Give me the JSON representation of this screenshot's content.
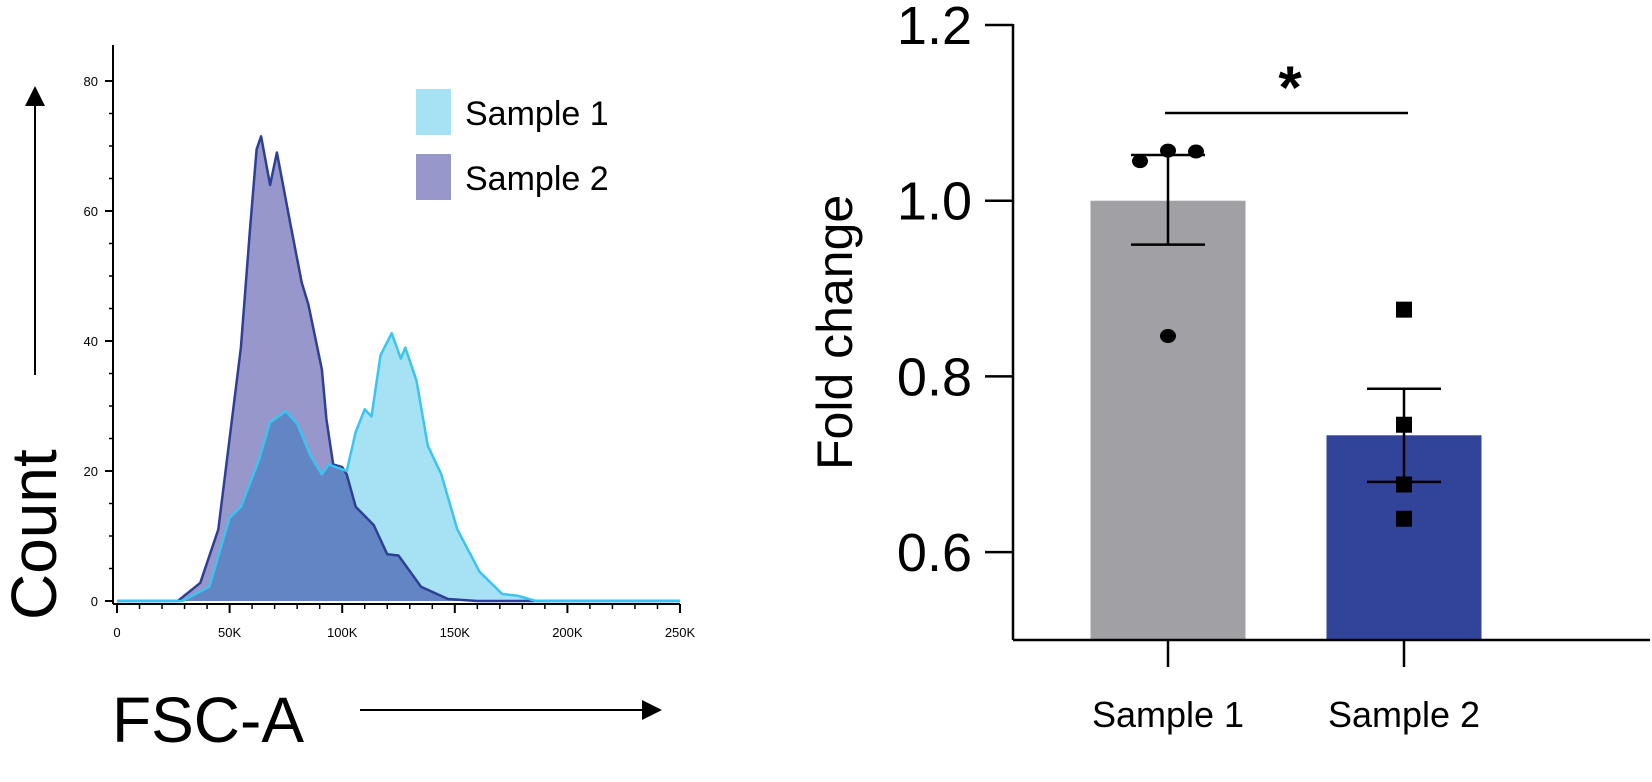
{
  "chart_data": [
    {
      "type": "area",
      "title": "",
      "xlabel": "FSC-A",
      "ylabel": "Count",
      "xlim": [
        0,
        250
      ],
      "ylim": [
        0,
        80
      ],
      "x_unit": "K",
      "x_ticks": [
        0,
        50,
        100,
        150,
        200,
        250
      ],
      "x_tick_labels": [
        "0",
        "50K",
        "100K",
        "150K",
        "200K",
        "250K"
      ],
      "y_ticks": [
        0,
        20,
        40,
        60,
        80
      ],
      "y_tick_labels": [
        "0",
        "20",
        "40",
        "60",
        "80"
      ],
      "legend_position": "top-right",
      "series": [
        {
          "name": "Sample 1",
          "fill": "#a6e1f4",
          "stroke": "#3cc4f0",
          "x": [
            0,
            29,
            41,
            50,
            55,
            63,
            68,
            75,
            80,
            86,
            91,
            94,
            102,
            106,
            110,
            113,
            117,
            122,
            126,
            128,
            133,
            138,
            144,
            151,
            161,
            171,
            178,
            186,
            250
          ],
          "y": [
            0,
            0,
            2.2,
            12.8,
            14.5,
            21.7,
            27.5,
            29.2,
            27.3,
            22.3,
            19.5,
            21,
            20,
            26,
            29.5,
            28.4,
            37.8,
            41.2,
            37.3,
            39,
            33.9,
            23.9,
            19.5,
            11.1,
            4.5,
            1.1,
            0.8,
            0,
            0
          ]
        },
        {
          "name": "Sample 2",
          "fill": "#9797cc",
          "stroke": "#2e3f96",
          "x": [
            0,
            27,
            37,
            45,
            50,
            55,
            59,
            62,
            64,
            68,
            71,
            77,
            82,
            85,
            91,
            93,
            96,
            100,
            102,
            106,
            114,
            120,
            125,
            135,
            147,
            160,
            250
          ],
          "y": [
            0,
            0,
            2.8,
            11,
            25,
            39,
            57,
            69.5,
            71.5,
            64,
            69,
            58,
            49,
            45.6,
            35.6,
            28,
            21,
            20.6,
            19.5,
            14.5,
            11.7,
            7.2,
            7,
            2.2,
            0.3,
            0,
            0
          ]
        }
      ]
    },
    {
      "type": "bar",
      "title": "",
      "xlabel": "",
      "ylabel": "Fold change",
      "ylim": [
        0.5,
        1.2
      ],
      "y_ticks": [
        0.6,
        0.8,
        1.0,
        1.2
      ],
      "y_tick_labels": [
        "0.6",
        "0.8",
        "1.0",
        "1.2"
      ],
      "categories": [
        "Sample 1",
        "Sample 2"
      ],
      "values": [
        1.0,
        0.733
      ],
      "error_upper": [
        1.052,
        0.786
      ],
      "error_lower": [
        0.95,
        0.68
      ],
      "colors": [
        "#a1a1a5",
        "#32439a"
      ],
      "points": [
        [
          1.045,
          1.057,
          1.056,
          0.846
        ],
        [
          0.876,
          0.745,
          0.677,
          0.638
        ]
      ],
      "point_markers": [
        "circle",
        "square"
      ],
      "significance": {
        "between": [
          "Sample 1",
          "Sample 2"
        ],
        "label": "*"
      }
    }
  ]
}
